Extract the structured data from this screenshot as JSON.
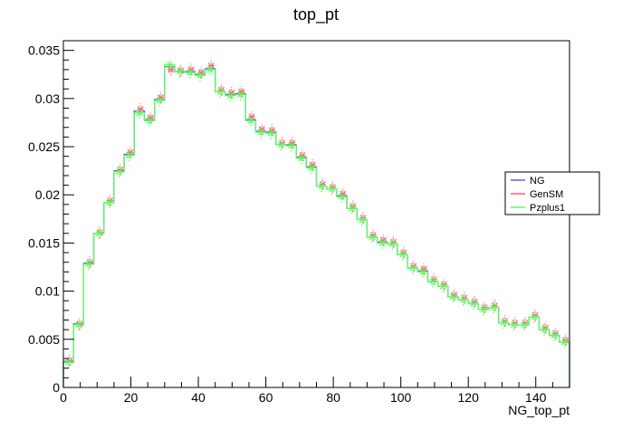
{
  "chart_data": {
    "type": "line",
    "title": "top_pt",
    "xlabel": "NG_top_pt",
    "ylabel": "",
    "xlim": [
      0,
      150
    ],
    "ylim": [
      0,
      0.036
    ],
    "xticks": [
      "0",
      "20",
      "40",
      "60",
      "80",
      "100",
      "120",
      "140"
    ],
    "yticks": [
      "0",
      "0.005",
      "0.01",
      "0.015",
      "0.02",
      "0.025",
      "0.03",
      "0.035"
    ],
    "bin_width": 3,
    "bin_centers": [
      1.5,
      4.5,
      7.5,
      10.5,
      13.5,
      16.5,
      19.5,
      22.5,
      25.5,
      28.5,
      31.5,
      34.5,
      37.5,
      40.5,
      43.5,
      46.5,
      49.5,
      52.5,
      55.5,
      58.5,
      61.5,
      64.5,
      67.5,
      70.5,
      73.5,
      76.5,
      79.5,
      82.5,
      85.5,
      88.5,
      91.5,
      94.5,
      97.5,
      100.5,
      103.5,
      106.5,
      109.5,
      112.5,
      115.5,
      118.5,
      121.5,
      124.5,
      127.5,
      130.5,
      133.5,
      136.5,
      139.5,
      142.5,
      145.5,
      148.5
    ],
    "legend": {
      "position": "right",
      "entries": [
        "NG",
        "GenSM",
        "Pzplus1"
      ]
    },
    "series": [
      {
        "name": "NG",
        "color": "#5a5aff",
        "style": "step",
        "values": [
          0.0027,
          0.0066,
          0.0129,
          0.016,
          0.0192,
          0.0225,
          0.0242,
          0.0287,
          0.0278,
          0.0299,
          0.0333,
          0.0328,
          0.0328,
          0.0325,
          0.0331,
          0.0307,
          0.0304,
          0.0305,
          0.0278,
          0.0266,
          0.0265,
          0.0252,
          0.0252,
          0.0239,
          0.0229,
          0.0209,
          0.0206,
          0.0199,
          0.0186,
          0.0174,
          0.0156,
          0.0151,
          0.0149,
          0.0138,
          0.0124,
          0.0121,
          0.011,
          0.0105,
          0.0094,
          0.0091,
          0.0087,
          0.0081,
          0.0083,
          0.0067,
          0.0065,
          0.0065,
          0.0073,
          0.006,
          0.0054,
          0.0047
        ]
      },
      {
        "name": "GenSM",
        "color": "#ff5a7a",
        "style": "markers",
        "values": [
          0.0028,
          0.0066,
          0.013,
          0.0161,
          0.0194,
          0.0226,
          0.0244,
          0.0289,
          0.028,
          0.0301,
          0.033,
          0.0329,
          0.033,
          0.0327,
          0.0334,
          0.0309,
          0.0306,
          0.0307,
          0.0281,
          0.0268,
          0.0267,
          0.0254,
          0.0254,
          0.0241,
          0.0231,
          0.0211,
          0.0208,
          0.0201,
          0.0188,
          0.0176,
          0.0158,
          0.0153,
          0.0151,
          0.014,
          0.0126,
          0.0123,
          0.0112,
          0.0107,
          0.0096,
          0.0093,
          0.0089,
          0.0083,
          0.0085,
          0.0069,
          0.0067,
          0.0067,
          0.0075,
          0.0062,
          0.0056,
          0.0049
        ]
      },
      {
        "name": "Pzplus1",
        "color": "#5aff5a",
        "style": "step+markers",
        "values": [
          0.0026,
          0.0065,
          0.0128,
          0.016,
          0.0192,
          0.0224,
          0.0241,
          0.0285,
          0.0277,
          0.0298,
          0.0335,
          0.0328,
          0.0327,
          0.0324,
          0.033,
          0.0307,
          0.0303,
          0.0304,
          0.0277,
          0.0265,
          0.0264,
          0.0252,
          0.0251,
          0.0238,
          0.0228,
          0.0209,
          0.0206,
          0.0198,
          0.0186,
          0.0174,
          0.0156,
          0.015,
          0.0149,
          0.0138,
          0.0124,
          0.012,
          0.011,
          0.0105,
          0.0094,
          0.0091,
          0.0087,
          0.0081,
          0.0083,
          0.0067,
          0.0065,
          0.0065,
          0.0073,
          0.006,
          0.0054,
          0.0047
        ]
      }
    ],
    "error": 0.0006
  }
}
